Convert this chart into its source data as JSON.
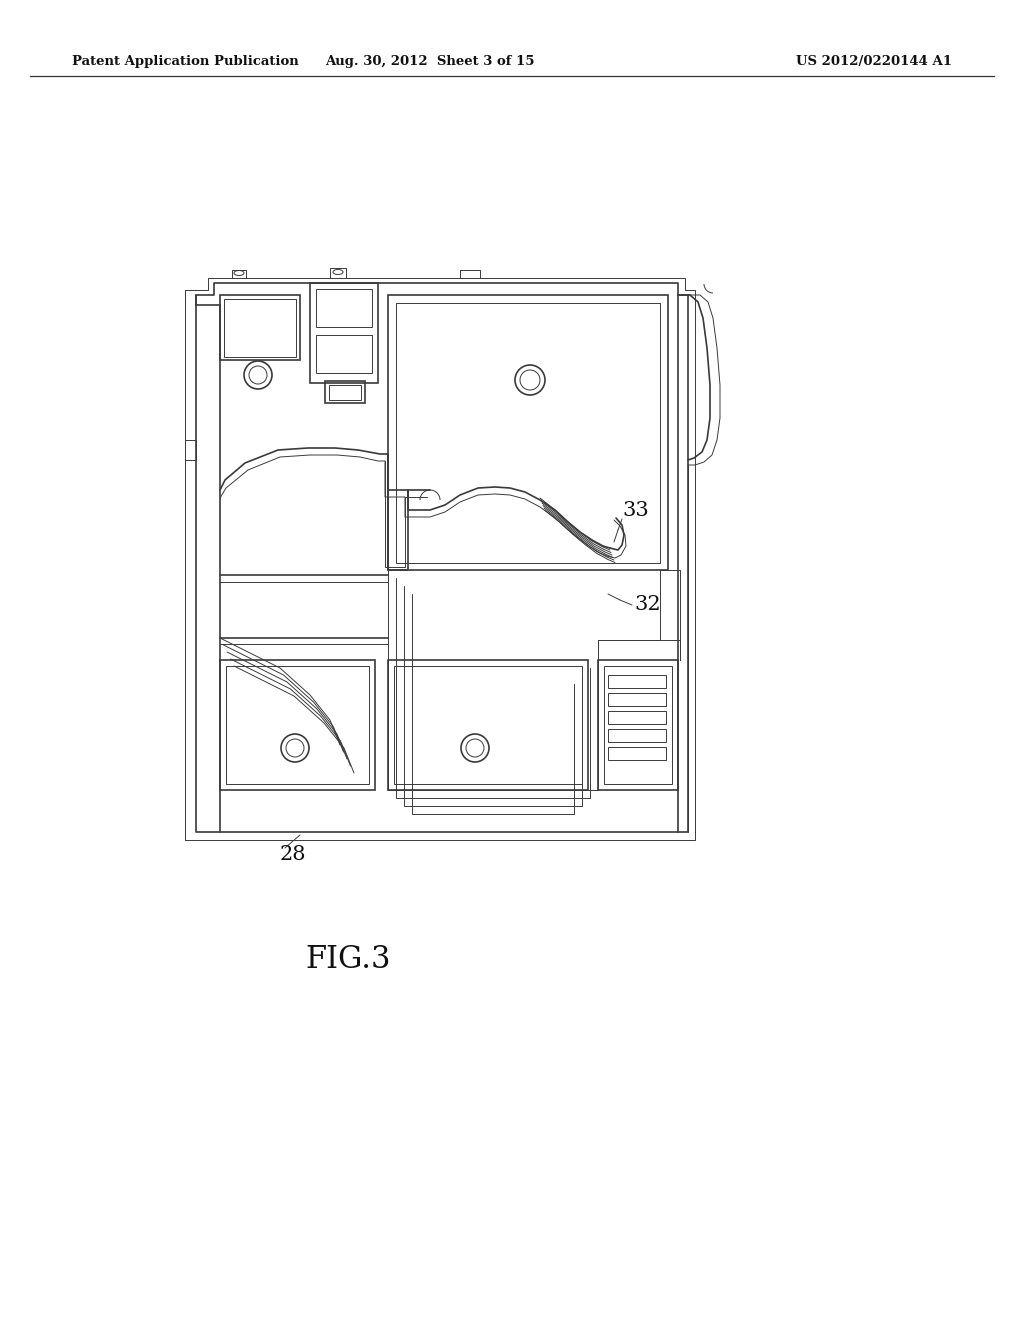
{
  "background_color": "#ffffff",
  "header_left": "Patent Application Publication",
  "header_center": "Aug. 30, 2012  Sheet 3 of 15",
  "header_right": "US 2012/0220144 A1",
  "figure_label": "FIG.3",
  "label_28": "28",
  "label_32": "32",
  "label_33": "33",
  "line_color": "#3a3a3a",
  "lw_outer": 1.8,
  "lw_inner": 1.2,
  "lw_thin": 0.7
}
